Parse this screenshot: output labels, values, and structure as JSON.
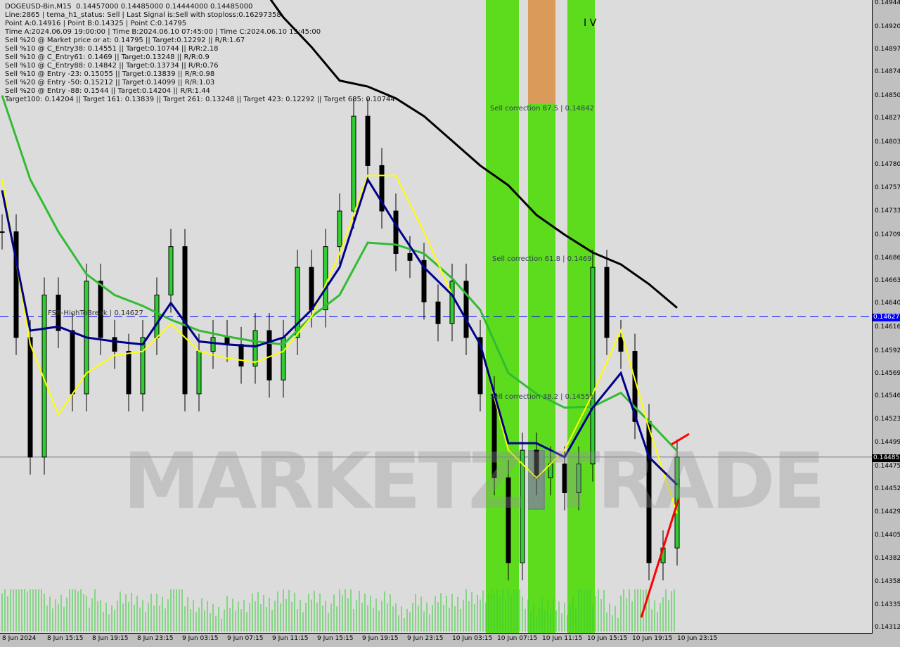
{
  "header": {
    "lines": [
      "DOGEUSD-Bin,M15  0.14457000 0.14485000 0.14444000 0.14485000",
      "Line:2865 | tema_h1_status: Sell | Last Signal is:Sell with stoploss:0.16297358",
      "Point A:0.14916 | Point B:0.14325 | Point C:0.14795",
      "Time A:2024.06.09 19:00:00 | Time B:2024.06.10 07:45:00 | Time C:2024.06.10 15:45:00",
      "Sell %20 @ Market price or at: 0.14795 || Target:0.12292 || R/R:1.67",
      "Sell %10 @ C_Entry38: 0.14551 || Target:0.10744 || R/R:2.18",
      "Sell %10 @ C_Entry61: 0.1469 || Target:0.13248 || R/R:0.9",
      "Sell %10 @ C_Entry88: 0.14842 || Target:0.13734 || R/R:0.76",
      "Sell %10 @ Entry -23: 0.15055 || Target:0.13839 || R/R:0.98",
      "Sell %20 @ Entry -50: 0.15212 || Target:0.14099 || R/R:1.03",
      "Sell %20 @ Entry -88: 0.1544 || Target:0.14204 || R/R:1.44",
      "Target100: 0.14204 || Target 161: 0.13839 || Target 261: 0.13248 || Target 423: 0.12292 || Target 685: 0.10744"
    ]
  },
  "annotations": {
    "sell_875": "Sell correction 87.5 | 0.14842",
    "sell_618": "Sell correction 61.8 | 0.1469",
    "sell_382": "Sell correction 38.2 | 0.14551",
    "wave": "I V",
    "fsb": "FSB-HighToBreak | 0.14627",
    "watermark": "MARKETZITRADE"
  },
  "colors": {
    "band": "#5ddc1e",
    "orange": "#d99a5a",
    "ma200": "#000000",
    "ma_green": "#33bb33",
    "ma_navy": "#00008b",
    "ma_yellow": "#ffff00",
    "level": "#0000ff",
    "bull": "#32cd32",
    "bear": "#000000"
  },
  "chart_data": {
    "type": "candlestick",
    "symbol": "DOGEUSD-Bin,M15",
    "ylim": [
      0.14312,
      0.14944
    ],
    "y_ticks": [
      "0.14944",
      "0.14920",
      "0.14897",
      "0.14874",
      "0.14850",
      "0.14827",
      "0.14803",
      "0.14780",
      "0.14757",
      "0.14733",
      "0.14709",
      "0.14686",
      "0.14663",
      "0.14640",
      "0.14616",
      "0.14592",
      "0.14569",
      "0.14546",
      "0.14523",
      "0.14499",
      "0.14475",
      "0.14452",
      "0.14429",
      "0.14405",
      "0.14382",
      "0.14358",
      "0.14335",
      "0.14312"
    ],
    "x_ticks": [
      "8 Jun 2024",
      "8 Jun 15:15",
      "8 Jun 19:15",
      "8 Jun 23:15",
      "9 Jun 03:15",
      "9 Jun 07:15",
      "9 Jun 11:15",
      "9 Jun 15:15",
      "9 Jun 19:15",
      "9 Jun 23:15",
      "10 Jun 03:15",
      "10 Jun 07:15",
      "10 Jun 11:15",
      "10 Jun 15:15",
      "10 Jun 19:15",
      "10 Jun 23:15"
    ],
    "times": [
      "06-08 11:15",
      "06-08 12:30",
      "06-08 13:45",
      "06-08 15:00",
      "06-08 16:15",
      "06-08 17:30",
      "06-08 18:45",
      "06-08 20:00",
      "06-08 21:15",
      "06-08 22:30",
      "06-08 23:45",
      "06-09 01:00",
      "06-09 02:15",
      "06-09 03:30",
      "06-09 04:45",
      "06-09 06:00",
      "06-09 07:15",
      "06-09 08:30",
      "06-09 09:45",
      "06-09 11:00",
      "06-09 12:15",
      "06-09 13:30",
      "06-09 14:45",
      "06-09 16:00",
      "06-09 17:15",
      "06-09 18:30",
      "06-09 19:45",
      "06-09 21:00",
      "06-09 22:15",
      "06-09 23:30",
      "06-10 00:45",
      "06-10 02:00",
      "06-10 03:15",
      "06-10 04:30",
      "06-10 05:45",
      "06-10 07:00",
      "06-10 08:15",
      "06-10 09:30",
      "06-10 10:45",
      "06-10 12:00",
      "06-10 13:15",
      "06-10 14:30",
      "06-10 15:45",
      "06-10 17:00",
      "06-10 18:15",
      "06-10 19:30",
      "06-10 20:45",
      "06-10 22:00",
      "06-10 23:15"
    ],
    "close": [
      0.14713,
      0.14606,
      0.14485,
      0.14649,
      0.14613,
      0.14549,
      0.14663,
      0.14606,
      0.14592,
      0.14549,
      0.14606,
      0.14649,
      0.14698,
      0.14549,
      0.14592,
      0.14606,
      0.14599,
      0.14577,
      0.14613,
      0.14563,
      0.14606,
      0.14677,
      0.14634,
      0.14698,
      0.14734,
      0.1483,
      0.1478,
      0.14734,
      0.14691,
      0.14684,
      0.14642,
      0.1462,
      0.14663,
      0.14606,
      0.14549,
      0.14464,
      0.14378,
      0.14492,
      0.14464,
      0.14478,
      0.14449,
      0.14478,
      0.14677,
      0.14606,
      0.14592,
      0.14521,
      0.14378,
      0.14393,
      0.14485
    ],
    "overlays_every_other_time": {
      "ma_black": [
        null,
        null,
        null,
        null,
        null,
        null,
        null,
        null,
        null,
        0.1497,
        0.1493,
        0.149,
        0.14866,
        0.1486,
        0.14848,
        0.1483,
        0.14805,
        0.1478,
        0.1476,
        0.1473,
        0.1471,
        0.14692,
        0.1468,
        0.1466,
        0.14636
      ],
      "ma_green": [
        0.14851,
        0.14766,
        0.14713,
        0.1467,
        0.14649,
        0.14638,
        0.14624,
        0.14613,
        0.14607,
        0.14602,
        0.14599,
        0.14627,
        0.14649,
        0.14702,
        0.147,
        0.14691,
        0.14666,
        0.14634,
        0.1457,
        0.14549,
        0.14535,
        0.14536,
        0.1455,
        0.14521,
        0.14491
      ],
      "ma_navy": [
        0.14755,
        0.14613,
        0.14617,
        0.14606,
        0.14602,
        0.14599,
        0.14641,
        0.14602,
        0.14599,
        0.14597,
        0.14606,
        0.14634,
        0.14677,
        0.14766,
        0.1472,
        0.14677,
        0.14649,
        0.14599,
        0.14499,
        0.14499,
        0.14485,
        0.14535,
        0.1457,
        0.14485,
        0.14457
      ],
      "ma_yellow": [
        0.14766,
        0.14599,
        0.14528,
        0.1457,
        0.14588,
        0.14592,
        0.1462,
        0.14592,
        0.14585,
        0.14581,
        0.14592,
        0.14627,
        0.14691,
        0.1477,
        0.1477,
        0.14713,
        0.14649,
        0.14599,
        0.14492,
        0.14464,
        0.14492,
        0.14549,
        0.14613,
        0.14514,
        0.14428
      ]
    },
    "levels": {
      "fsb_high_to_break": 0.14627,
      "current_price": 0.14485
    },
    "current_price_label": "0.14485",
    "level_label": "0.14627",
    "grid": false
  }
}
